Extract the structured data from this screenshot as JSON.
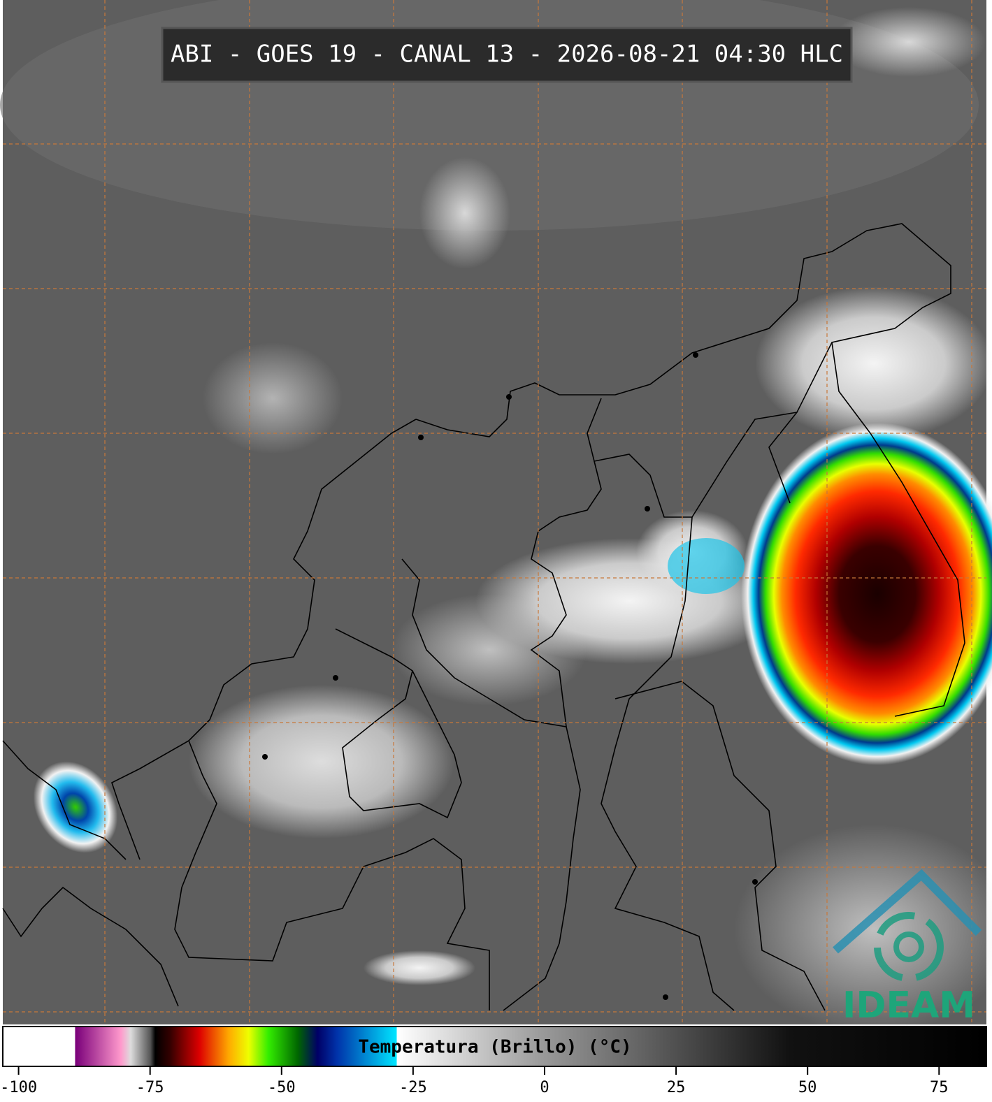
{
  "title": "ABI - GOES 19 - CANAL 13 - 2026-08-21 04:30 HLC",
  "colorbar": {
    "label": "Temperatura (Brillo) (°C)",
    "lim": [
      -103,
      84
    ],
    "ticks": [
      -100,
      -75,
      -50,
      -25,
      0,
      25,
      50,
      75
    ]
  },
  "logo": "IDEAM"
}
